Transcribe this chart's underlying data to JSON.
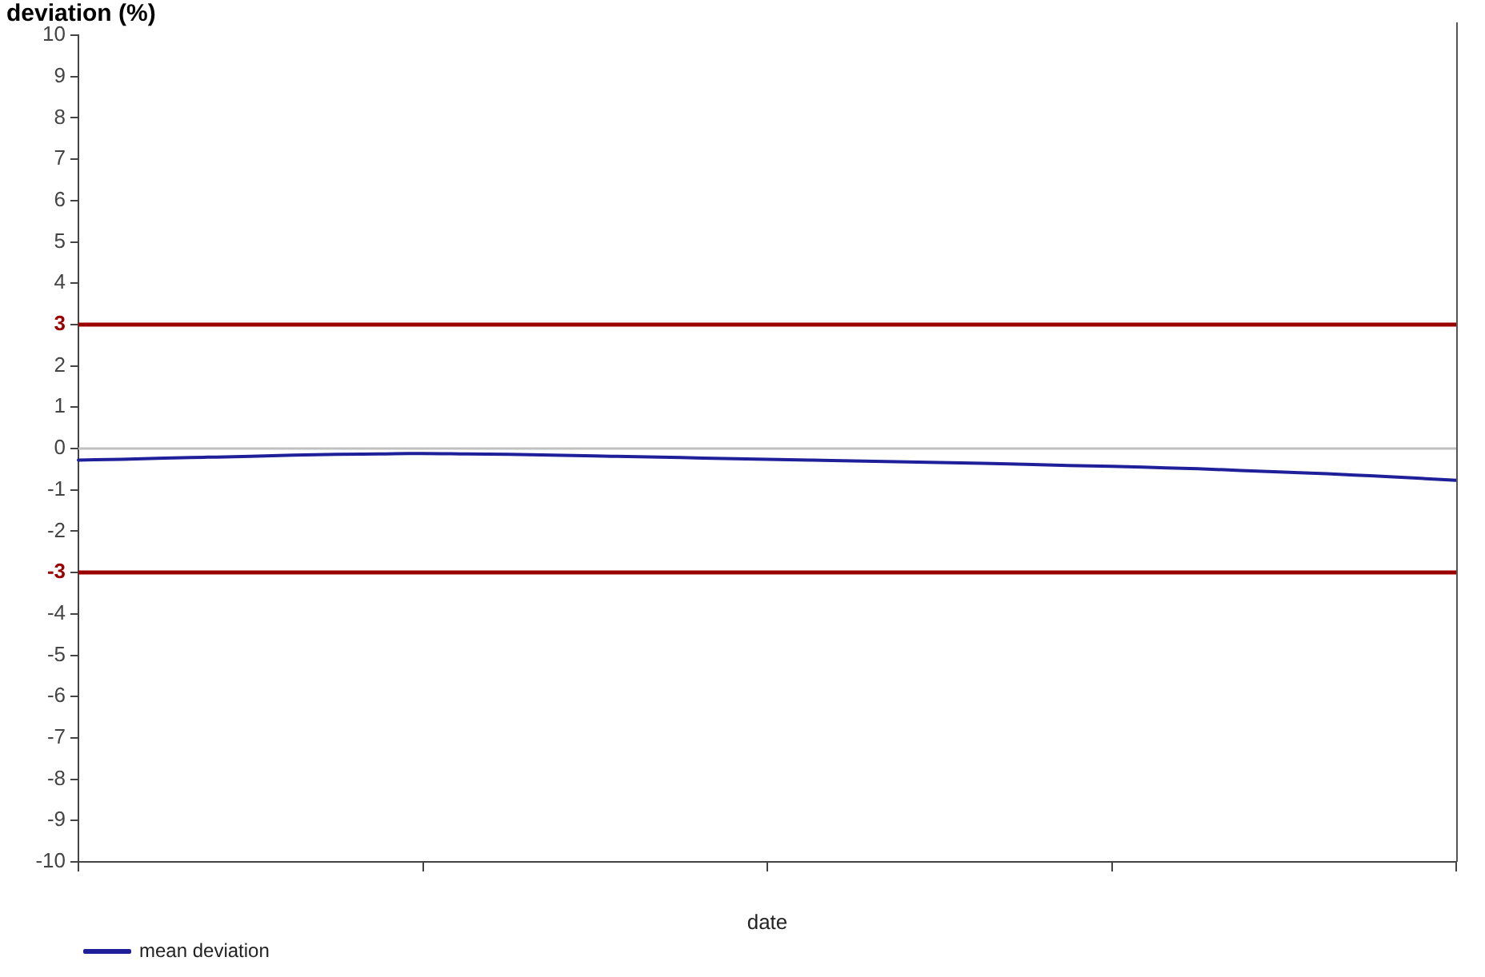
{
  "chart_data": {
    "type": "line",
    "ylabel": "deviation (%)",
    "xlabel": "date",
    "categories": [
      null,
      null,
      null,
      null,
      null,
      null,
      null,
      null,
      null,
      null,
      null,
      null,
      null,
      null,
      null,
      null,
      null,
      null,
      null,
      null,
      null,
      null,
      null,
      null,
      null,
      null,
      null,
      null,
      null,
      null,
      null,
      null,
      null
    ],
    "series": [
      {
        "name": "mean deviation",
        "color": "#1f1f99",
        "values": [
          -0.28,
          -0.26,
          -0.23,
          -0.21,
          -0.19,
          -0.16,
          -0.14,
          -0.13,
          -0.12,
          -0.13,
          -0.14,
          -0.16,
          -0.18,
          -0.2,
          -0.22,
          -0.24,
          -0.26,
          -0.28,
          -0.3,
          -0.32,
          -0.34,
          -0.36,
          -0.38,
          -0.41,
          -0.43,
          -0.46,
          -0.49,
          -0.53,
          -0.57,
          -0.61,
          -0.66,
          -0.71,
          -0.77
        ]
      }
    ],
    "ylim": [
      -10,
      10
    ],
    "yticks": [
      -10,
      -9,
      -8,
      -7,
      -6,
      -5,
      -4,
      {
        "value": -3,
        "label": null
      },
      -2,
      -1,
      0,
      1,
      2,
      {
        "value": 3,
        "label": null
      },
      4,
      5,
      6,
      7,
      8,
      9,
      10
    ],
    "ref_lines": [
      {
        "axis": "y",
        "value": 3,
        "label": "3",
        "color": "#9b0000"
      },
      {
        "axis": "y",
        "value": -3,
        "label": "-3",
        "color": "#9b0000"
      },
      {
        "axis": "y",
        "value": 0,
        "color": "#c0c0c0"
      }
    ],
    "grid": false,
    "legend": "bottom left",
    "marker": "none"
  }
}
